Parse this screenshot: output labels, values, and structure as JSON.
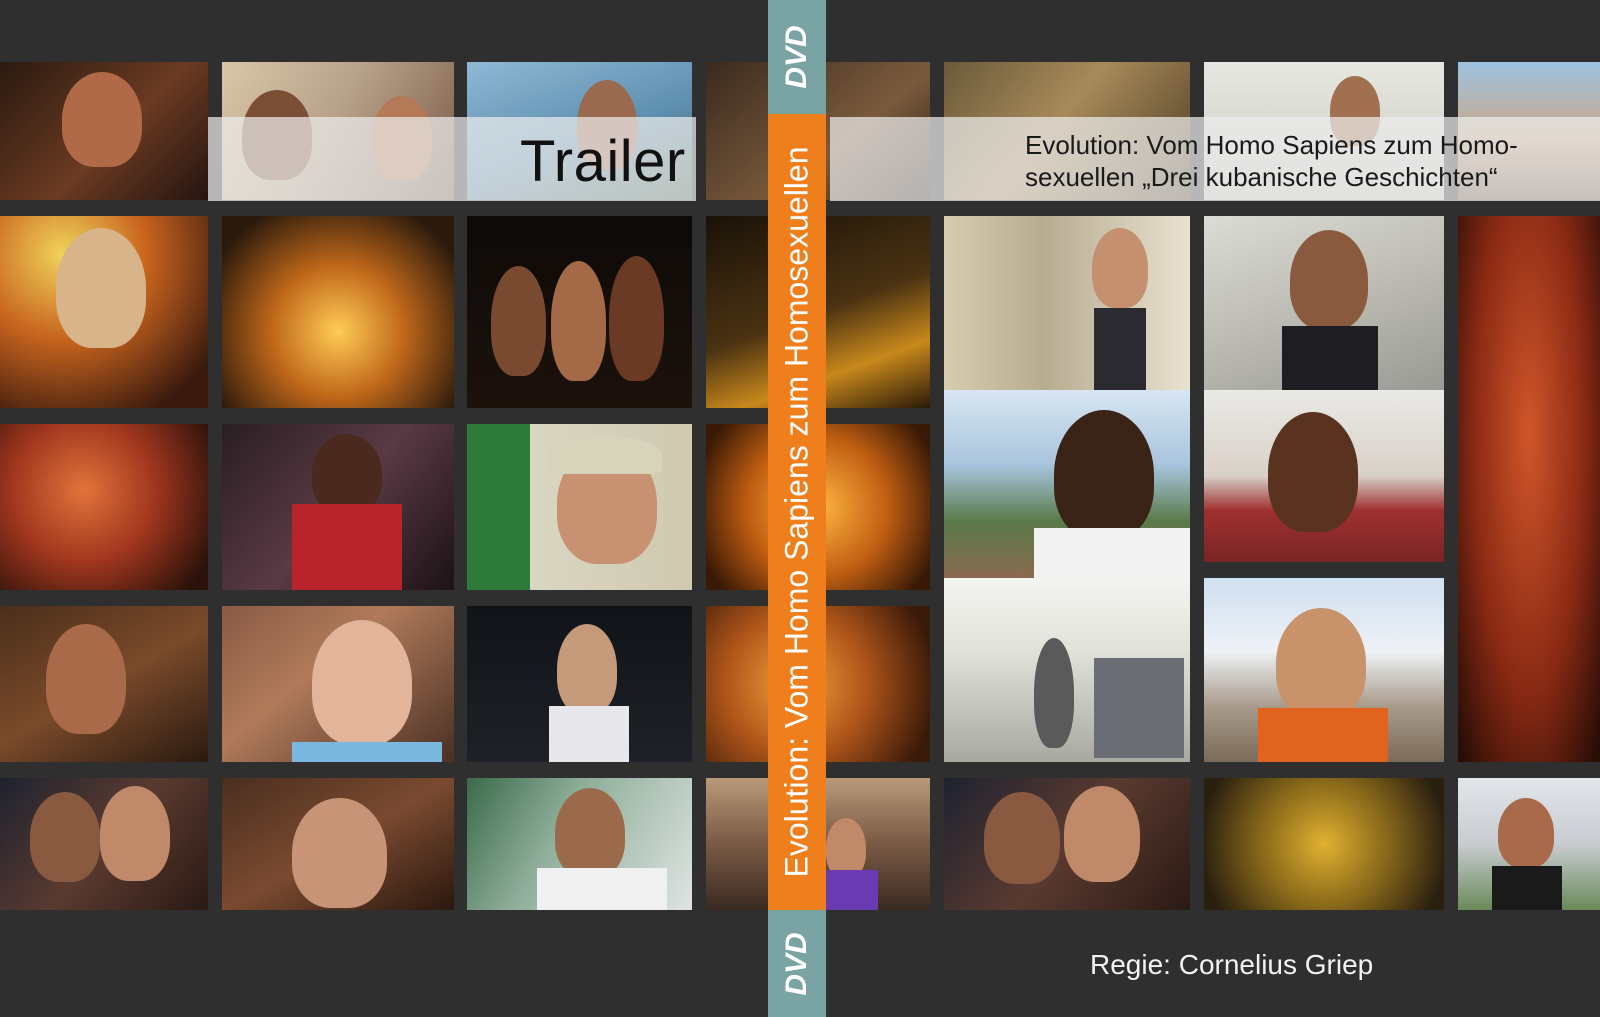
{
  "trailer_label": "Trailer",
  "title_line1": "Evolution: Vom Homo Sapiens zum Homo-",
  "title_line2": "sexuellen „Drei kubanische Geschichten“",
  "spine_title": "Evolution: Vom Homo Sapiens zum Homosexuellen",
  "spine_dvd_top": "DVD",
  "spine_dvd_bottom": "DVD",
  "credit": "Regie: Cornelius Griep",
  "colors": {
    "background": "#2f2f2f",
    "spine_orange": "#ee7f1c",
    "spine_teal": "#7aa3a3"
  }
}
